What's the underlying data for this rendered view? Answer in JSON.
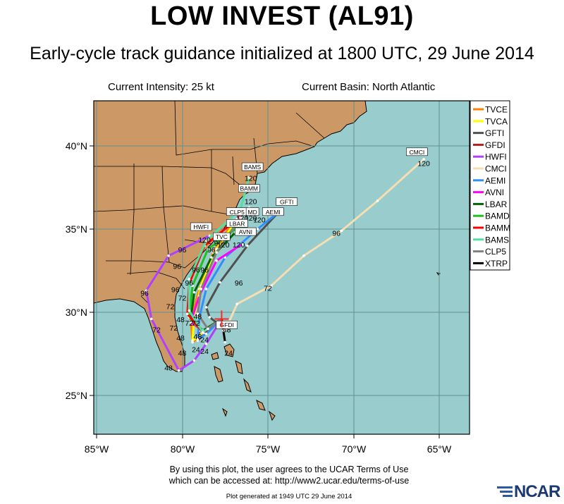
{
  "title": "LOW INVEST (AL91)",
  "subtitle": "Early-cycle track guidance initialized at 1800 UTC, 29 June 2014",
  "info": {
    "intensity": "Current Intensity: 25 kt",
    "basin": "Current Basin: North Atlantic"
  },
  "footer": {
    "terms_line1": "By using this plot, the user agrees to the UCAR Terms of Use",
    "terms_line2": "which can be accessed at: http://www2.ucar.edu/terms-of-use",
    "generated": "Plot generated at 1949 UTC   29 June 2014",
    "logo": "NCAR"
  },
  "map": {
    "lon_range": [
      -85,
      -63
    ],
    "lat_range": [
      23,
      43
    ],
    "x_ticks": [
      "85°W",
      "80°W",
      "75°W",
      "70°W",
      "65°W"
    ],
    "y_ticks": [
      "25°N",
      "30°N",
      "35°N",
      "40°N"
    ],
    "ocean_color": "#99cccc",
    "land_color": "#cc9966",
    "current_position": {
      "lon": -77.7,
      "lat": 29.6
    }
  },
  "legend": [
    {
      "name": "TVCE",
      "color": "#ff8000"
    },
    {
      "name": "TVCA",
      "color": "#ffff00"
    },
    {
      "name": "GFTI",
      "color": "#505050"
    },
    {
      "name": "GFDI",
      "color": "#b02020"
    },
    {
      "name": "HWFI",
      "color": "#b040ff"
    },
    {
      "name": "CMCI",
      "color": "#f5deb3"
    },
    {
      "name": "AEMI",
      "color": "#2f8fff"
    },
    {
      "name": "AVNI",
      "color": "#ff00ff"
    },
    {
      "name": "LBAR",
      "color": "#006400"
    },
    {
      "name": "BAMD",
      "color": "#20c020"
    },
    {
      "name": "BAMM",
      "color": "#ff0000"
    },
    {
      "name": "BAMS",
      "color": "#50e0a0"
    },
    {
      "name": "CLP5",
      "color": "#808080"
    },
    {
      "name": "XTRP",
      "color": "#000000"
    }
  ],
  "chart_data": {
    "type": "scatter",
    "series": [
      {
        "name": "TVCE",
        "points": [
          [
            -77.7,
            29.6
          ],
          [
            -78.6,
            28.8
          ],
          [
            -79.4,
            28.2
          ],
          [
            -79.5,
            29.6
          ],
          [
            -79.0,
            31.4
          ],
          [
            -78.2,
            33.6
          ],
          [
            -77.0,
            35.5
          ]
        ],
        "end_label": "120"
      },
      {
        "name": "TVCA",
        "points": [
          [
            -77.7,
            29.6
          ],
          [
            -78.7,
            28.8
          ],
          [
            -79.4,
            28.3
          ],
          [
            -79.3,
            29.8
          ],
          [
            -78.9,
            31.6
          ],
          [
            -78.0,
            33.8
          ],
          [
            -76.8,
            35.6
          ]
        ],
        "end_label": "120"
      },
      {
        "name": "GFTI",
        "points": [
          [
            -77.7,
            29.6
          ],
          [
            -77.9,
            29.3
          ],
          [
            -78.4,
            29.7
          ],
          [
            -78.6,
            30.3
          ],
          [
            -77.8,
            31.8
          ],
          [
            -76.2,
            34.0
          ],
          [
            -74.3,
            36.1
          ]
        ],
        "end_label": "120"
      },
      {
        "name": "GFDI",
        "points": [
          [
            -77.7,
            29.6
          ],
          [
            -78.7,
            28.7
          ],
          [
            -79.1,
            28.3
          ],
          [
            -79.0,
            28.9
          ]
        ],
        "end_label": "GFDI"
      },
      {
        "name": "HWFI",
        "points": [
          [
            -77.7,
            29.6
          ],
          [
            -78.6,
            28.1
          ],
          [
            -79.3,
            27.1
          ],
          [
            -80.2,
            26.5
          ],
          [
            -81.8,
            29.6
          ],
          [
            -82.1,
            31.3
          ],
          [
            -80.8,
            33.4
          ],
          [
            -78.4,
            34.6
          ]
        ],
        "end_label": "120"
      },
      {
        "name": "CMCI",
        "points": [
          [
            -77.7,
            29.6
          ],
          [
            -77.5,
            28.9
          ],
          [
            -76.8,
            30.5
          ],
          [
            -74.8,
            31.6
          ],
          [
            -72.9,
            33.4
          ],
          [
            -70.7,
            34.9
          ],
          [
            -68.6,
            36.7
          ],
          [
            -65.9,
            39.2
          ]
        ],
        "end_label": "120"
      },
      {
        "name": "AEMI",
        "points": [
          [
            -77.7,
            29.6
          ],
          [
            -78.6,
            28.7
          ],
          [
            -79.1,
            28.4
          ],
          [
            -79.0,
            29.7
          ],
          [
            -78.6,
            31.4
          ],
          [
            -77.5,
            33.3
          ],
          [
            -75.6,
            35.0
          ],
          [
            -74.4,
            36.0
          ]
        ],
        "end_label": "120"
      },
      {
        "name": "AVNI",
        "points": [
          [
            -77.7,
            29.6
          ],
          [
            -78.8,
            28.9
          ],
          [
            -79.5,
            29.4
          ],
          [
            -79.0,
            31.0
          ],
          [
            -78.0,
            33.1
          ],
          [
            -76.5,
            34.1
          ]
        ],
        "end_label": "120"
      },
      {
        "name": "LBAR",
        "points": [
          [
            -77.7,
            29.6
          ],
          [
            -78.8,
            28.9
          ],
          [
            -79.5,
            29.6
          ],
          [
            -79.3,
            31.2
          ],
          [
            -78.3,
            33.3
          ],
          [
            -76.9,
            34.8
          ]
        ],
        "end_label": "120"
      },
      {
        "name": "BAMD",
        "points": [
          [
            -77.7,
            29.6
          ],
          [
            -78.8,
            28.8
          ],
          [
            -79.6,
            29.7
          ],
          [
            -79.4,
            31.6
          ],
          [
            -78.5,
            33.8
          ],
          [
            -76.5,
            35.3
          ]
        ],
        "end_label": "120"
      },
      {
        "name": "BAMM",
        "points": [
          [
            -77.7,
            29.6
          ],
          [
            -78.8,
            28.8
          ],
          [
            -79.7,
            29.9
          ],
          [
            -79.6,
            31.7
          ],
          [
            -78.7,
            34.0
          ],
          [
            -76.8,
            35.6
          ],
          [
            -76.1,
            36.3
          ]
        ],
        "end_label": "120"
      },
      {
        "name": "BAMS",
        "points": [
          [
            -77.7,
            29.6
          ],
          [
            -78.8,
            28.8
          ],
          [
            -79.6,
            30.1
          ],
          [
            -79.6,
            32.0
          ],
          [
            -78.6,
            34.3
          ],
          [
            -76.6,
            36.2
          ],
          [
            -76.1,
            38.1
          ]
        ],
        "end_label": "120"
      },
      {
        "name": "CLP5",
        "points": [
          [
            -77.7,
            29.6
          ],
          [
            -78.5,
            29.0
          ],
          [
            -79.1,
            29.9
          ],
          [
            -78.9,
            31.4
          ],
          [
            -78.0,
            33.6
          ],
          [
            -76.6,
            35.7
          ]
        ],
        "end_label": "120"
      },
      {
        "name": "XTRP",
        "points": [
          [
            -77.7,
            29.6
          ],
          [
            -77.6,
            28.9
          ],
          [
            -77.5,
            28.2
          ]
        ],
        "end_label": "24"
      }
    ],
    "tau_labels": [
      {
        "text": "120",
        "lon": -65.9,
        "lat": 38.8
      },
      {
        "text": "96",
        "lon": -71.0,
        "lat": 34.6
      },
      {
        "text": "72",
        "lon": -75.0,
        "lat": 31.3
      },
      {
        "text": "96",
        "lon": -76.7,
        "lat": 31.6
      },
      {
        "text": "96",
        "lon": -82.2,
        "lat": 31.0
      },
      {
        "text": "72",
        "lon": -81.5,
        "lat": 28.8
      },
      {
        "text": "48",
        "lon": -80.8,
        "lat": 26.5
      },
      {
        "text": "72",
        "lon": -80.7,
        "lat": 30.2
      },
      {
        "text": "72",
        "lon": -80.5,
        "lat": 28.9
      },
      {
        "text": "48",
        "lon": -80.1,
        "lat": 29.4
      },
      {
        "text": "48",
        "lon": -79.1,
        "lat": 29.6
      },
      {
        "text": "48",
        "lon": -80.1,
        "lat": 28.3
      },
      {
        "text": "48",
        "lon": -79.1,
        "lat": 28.4
      },
      {
        "text": "48",
        "lon": -77.4,
        "lat": 28.8
      },
      {
        "text": "48",
        "lon": -80.0,
        "lat": 27.4
      },
      {
        "text": "24",
        "lon": -79.2,
        "lat": 27.6
      },
      {
        "text": "24",
        "lon": -78.7,
        "lat": 27.5
      },
      {
        "text": "24",
        "lon": -77.3,
        "lat": 27.4
      },
      {
        "text": "24",
        "lon": -78.7,
        "lat": 28.2
      },
      {
        "text": "96",
        "lon": -80.3,
        "lat": 32.6
      },
      {
        "text": "96",
        "lon": -79.2,
        "lat": 32.4
      },
      {
        "text": "96",
        "lon": -78.7,
        "lat": 32.4
      },
      {
        "text": "96",
        "lon": -80.0,
        "lat": 33.6
      },
      {
        "text": "96",
        "lon": -80.4,
        "lat": 31.2
      },
      {
        "text": "96",
        "lon": -79.6,
        "lat": 31.6
      },
      {
        "text": "96",
        "lon": -78.3,
        "lat": 33.6
      },
      {
        "text": "96",
        "lon": -77.9,
        "lat": 34.0
      },
      {
        "text": "72",
        "lon": -80.0,
        "lat": 30.7
      },
      {
        "text": "72",
        "lon": -79.6,
        "lat": 29.2
      },
      {
        "text": "72",
        "lon": -79.2,
        "lat": 29.2
      },
      {
        "text": "120",
        "lon": -78.7,
        "lat": 34.2
      },
      {
        "text": "120",
        "lon": -77.6,
        "lat": 33.9
      },
      {
        "text": "120",
        "lon": -76.7,
        "lat": 33.9
      },
      {
        "text": "120",
        "lon": -76.5,
        "lat": 35.5
      },
      {
        "text": "120",
        "lon": -76.0,
        "lat": 35.5
      },
      {
        "text": "120",
        "lon": -75.5,
        "lat": 35.4
      },
      {
        "text": "120",
        "lon": -76.0,
        "lat": 36.5
      },
      {
        "text": "120",
        "lon": -76.0,
        "lat": 37.9
      }
    ],
    "boxed_labels": [
      {
        "text": "CMCI",
        "lon": -66.3,
        "lat": 39.5
      },
      {
        "text": "BAMS",
        "lon": -75.9,
        "lat": 38.6
      },
      {
        "text": "BAMM",
        "lon": -76.1,
        "lat": 37.3
      },
      {
        "text": "GFTI",
        "lon": -73.9,
        "lat": 36.5
      },
      {
        "text": "CLP5",
        "lon": -76.8,
        "lat": 35.9
      },
      {
        "text": "MD",
        "lon": -75.9,
        "lat": 35.9
      },
      {
        "text": "AEMI",
        "lon": -74.7,
        "lat": 35.9
      },
      {
        "text": "LBAR",
        "lon": -76.8,
        "lat": 35.2
      },
      {
        "text": "AVNI",
        "lon": -76.3,
        "lat": 34.7
      },
      {
        "text": "HWFI",
        "lon": -78.9,
        "lat": 35.0
      },
      {
        "text": "TVC",
        "lon": -77.7,
        "lat": 34.4
      },
      {
        "text": "GFDI",
        "lon": -77.4,
        "lat": 29.1
      }
    ]
  }
}
